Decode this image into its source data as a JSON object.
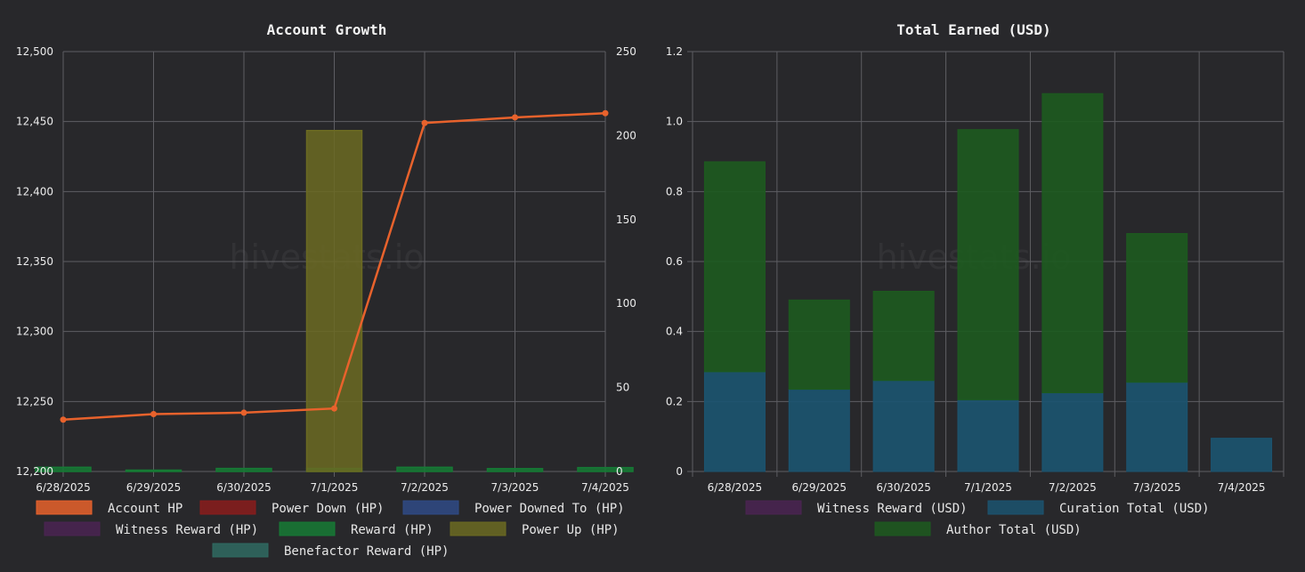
{
  "watermark": "hivestats.io",
  "chart_data": [
    {
      "type": "bar",
      "title": "Account Growth",
      "categories": [
        "6/28/2025",
        "6/29/2025",
        "6/30/2025",
        "7/1/2025",
        "7/2/2025",
        "7/3/2025",
        "7/4/2025"
      ],
      "y_left": {
        "min": 12200,
        "max": 12500,
        "ticks": [
          "12,200",
          "12,250",
          "12,300",
          "12,350",
          "12,400",
          "12,450",
          "12,500"
        ]
      },
      "y_right": {
        "min": 0,
        "max": 250,
        "ticks": [
          "0",
          "50",
          "100",
          "150",
          "200",
          "250"
        ]
      },
      "grid": true,
      "legend_position": "bottom",
      "series": [
        {
          "name": "Account HP",
          "kind": "line",
          "axis": "left",
          "color": "#e8622c",
          "values": [
            12237,
            12241,
            12242,
            12245,
            12449,
            12453,
            12456
          ]
        },
        {
          "name": "Power Down (HP)",
          "kind": "bar",
          "axis": "right",
          "color": "#8a1c1c",
          "values": [
            0,
            0,
            0,
            0,
            0,
            0,
            0
          ]
        },
        {
          "name": "Power Downed To (HP)",
          "kind": "bar",
          "axis": "right",
          "color": "#2f4a86",
          "values": [
            0,
            0,
            0,
            0,
            0,
            0,
            0
          ]
        },
        {
          "name": "Witness Reward (HP)",
          "kind": "bar",
          "axis": "right",
          "color": "#4a2352",
          "values": [
            0,
            0,
            0,
            0,
            0,
            0,
            0
          ]
        },
        {
          "name": "Reward (HP)",
          "kind": "bar",
          "axis": "right",
          "color": "#167a35",
          "values": [
            2.5,
            0.8,
            1.8,
            1.8,
            2.5,
            1.7,
            2.3
          ]
        },
        {
          "name": "Power Up (HP)",
          "kind": "bar",
          "axis": "right",
          "color": "#6b6a22",
          "values": [
            0,
            0,
            0,
            203,
            0,
            0,
            0
          ]
        },
        {
          "name": "Benefactor Reward (HP)",
          "kind": "bar",
          "axis": "right",
          "color": "#2f6a61",
          "values": [
            0,
            0,
            0,
            0,
            0,
            0,
            0
          ]
        }
      ]
    },
    {
      "type": "bar",
      "title": "Total Earned (USD)",
      "stacked": true,
      "categories": [
        "6/28/2025",
        "6/29/2025",
        "6/30/2025",
        "7/1/2025",
        "7/2/2025",
        "7/3/2025",
        "7/4/2025"
      ],
      "y": {
        "min": 0,
        "max": 1.2,
        "ticks": [
          "0",
          "0.2",
          "0.4",
          "0.6",
          "0.8",
          "1.0",
          "1.2"
        ]
      },
      "grid": true,
      "legend_position": "bottom",
      "series": [
        {
          "name": "Witness Reward (USD)",
          "color": "#4a2352",
          "values": [
            0,
            0,
            0,
            0,
            0,
            0,
            0
          ]
        },
        {
          "name": "Curation Total (USD)",
          "color": "#1b5470",
          "values": [
            0.285,
            0.235,
            0.26,
            0.205,
            0.225,
            0.255,
            0.095
          ]
        },
        {
          "name": "Author Total (USD)",
          "color": "#1d5a1f",
          "values": [
            0.6,
            0.255,
            0.255,
            0.772,
            0.855,
            0.425,
            0
          ]
        }
      ]
    }
  ]
}
